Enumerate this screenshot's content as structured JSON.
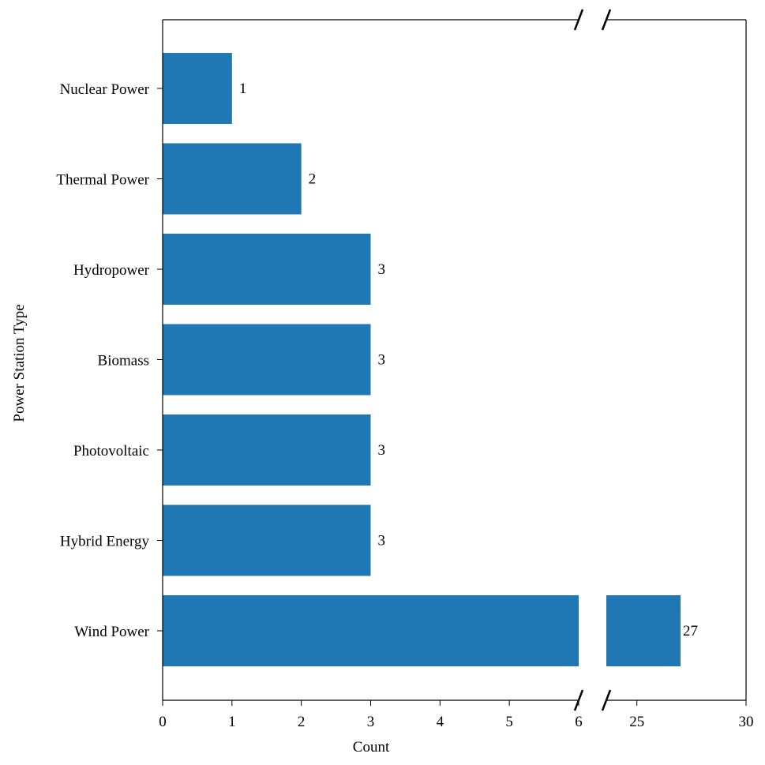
{
  "chart_data": {
    "type": "bar",
    "orientation": "horizontal",
    "title": "",
    "xlabel": "Count",
    "ylabel": "Power Station Type",
    "categories": [
      "Nuclear Power",
      "Thermal Power",
      "Hydropower",
      "Biomass",
      "Photovoltaic",
      "Hybrid Energy",
      "Wind Power"
    ],
    "values": [
      1,
      2,
      3,
      3,
      3,
      3,
      27
    ],
    "data_labels": [
      "1",
      "2",
      "3",
      "3",
      "3",
      "3",
      "27"
    ],
    "x_axis_broken": true,
    "xlim_segments": [
      [
        0,
        6
      ],
      [
        23.6,
        30
      ]
    ],
    "x_ticks_left": [
      "0",
      "1",
      "2",
      "3",
      "4",
      "5",
      "6"
    ],
    "x_ticks_right": [
      "25",
      "30"
    ],
    "grid": false,
    "legend": "none",
    "bar_color": "#1f77b4"
  }
}
